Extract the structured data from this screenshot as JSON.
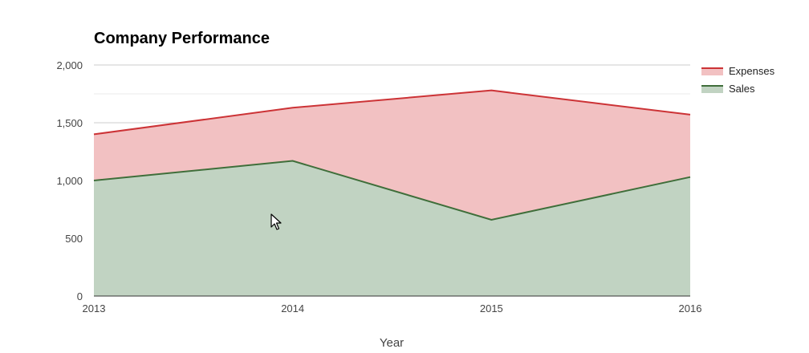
{
  "chart_data": {
    "type": "area",
    "title": "Company Performance",
    "xlabel": "Year",
    "ylabel": "",
    "categories": [
      "2013",
      "2014",
      "2015",
      "2016"
    ],
    "ylim": [
      0,
      2000
    ],
    "yticks": [
      0,
      500,
      1000,
      1500,
      2000
    ],
    "ytick_labels": [
      "0",
      "500",
      "1,000",
      "1,500",
      "2,000"
    ],
    "grid": true,
    "legend_position": "right",
    "series": [
      {
        "name": "Sales",
        "values": [
          1000,
          1170,
          660,
          1030
        ],
        "line_color": "#3f6e3a",
        "fill_color": "#c1d3c2"
      },
      {
        "name": "Expenses",
        "values": [
          1400,
          1630,
          1780,
          1570
        ],
        "line_color": "#cc3336",
        "fill_color": "#f2c1c2"
      }
    ]
  },
  "cursor": {
    "icon": "arrow-cursor-icon"
  }
}
